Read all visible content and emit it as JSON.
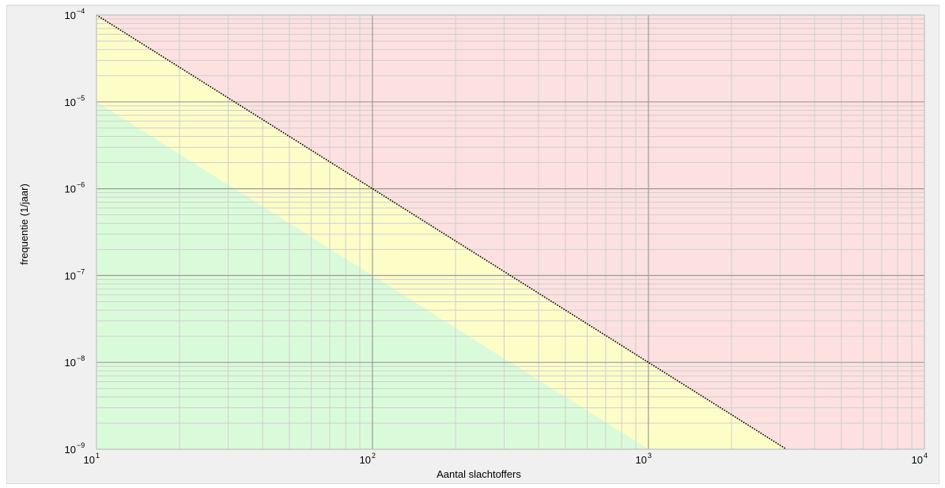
{
  "chart_data": {
    "type": "area",
    "xlabel": "Aantal slachtoffers",
    "ylabel": "frequentie (1/jaar)",
    "x_scale": "log",
    "y_scale": "log",
    "xlim": [
      10,
      10000
    ],
    "ylim": [
      1e-09,
      0.0001
    ],
    "x_ticks": [
      {
        "base": "10",
        "exp": "1",
        "value": 10
      },
      {
        "base": "10",
        "exp": "2",
        "value": 100
      },
      {
        "base": "10",
        "exp": "3",
        "value": 1000
      },
      {
        "base": "10",
        "exp": "4",
        "value": 10000
      }
    ],
    "y_ticks": [
      {
        "base": "10",
        "exp": "-4",
        "value": 0.0001
      },
      {
        "base": "10",
        "exp": "-5",
        "value": 1e-05
      },
      {
        "base": "10",
        "exp": "-6",
        "value": 1e-06
      },
      {
        "base": "10",
        "exp": "-7",
        "value": 1e-07
      },
      {
        "base": "10",
        "exp": "-8",
        "value": 1e-08
      },
      {
        "base": "10",
        "exp": "-9",
        "value": 1e-09
      }
    ],
    "grid": true,
    "boundaries": [
      {
        "role": "upper",
        "style": "dotted",
        "x": [
          10,
          100,
          1000,
          3162
        ],
        "y": [
          0.0001,
          1e-06,
          1e-08,
          1e-09
        ]
      },
      {
        "role": "lower",
        "style": "none",
        "x": [
          10,
          100,
          1000
        ],
        "y": [
          1e-05,
          1e-07,
          1e-09
        ]
      }
    ],
    "regions": [
      {
        "color": "#fde0e0"
      },
      {
        "color": "#fdfdc8"
      },
      {
        "color": "#dafbda"
      }
    ],
    "line_color": "#000000"
  }
}
